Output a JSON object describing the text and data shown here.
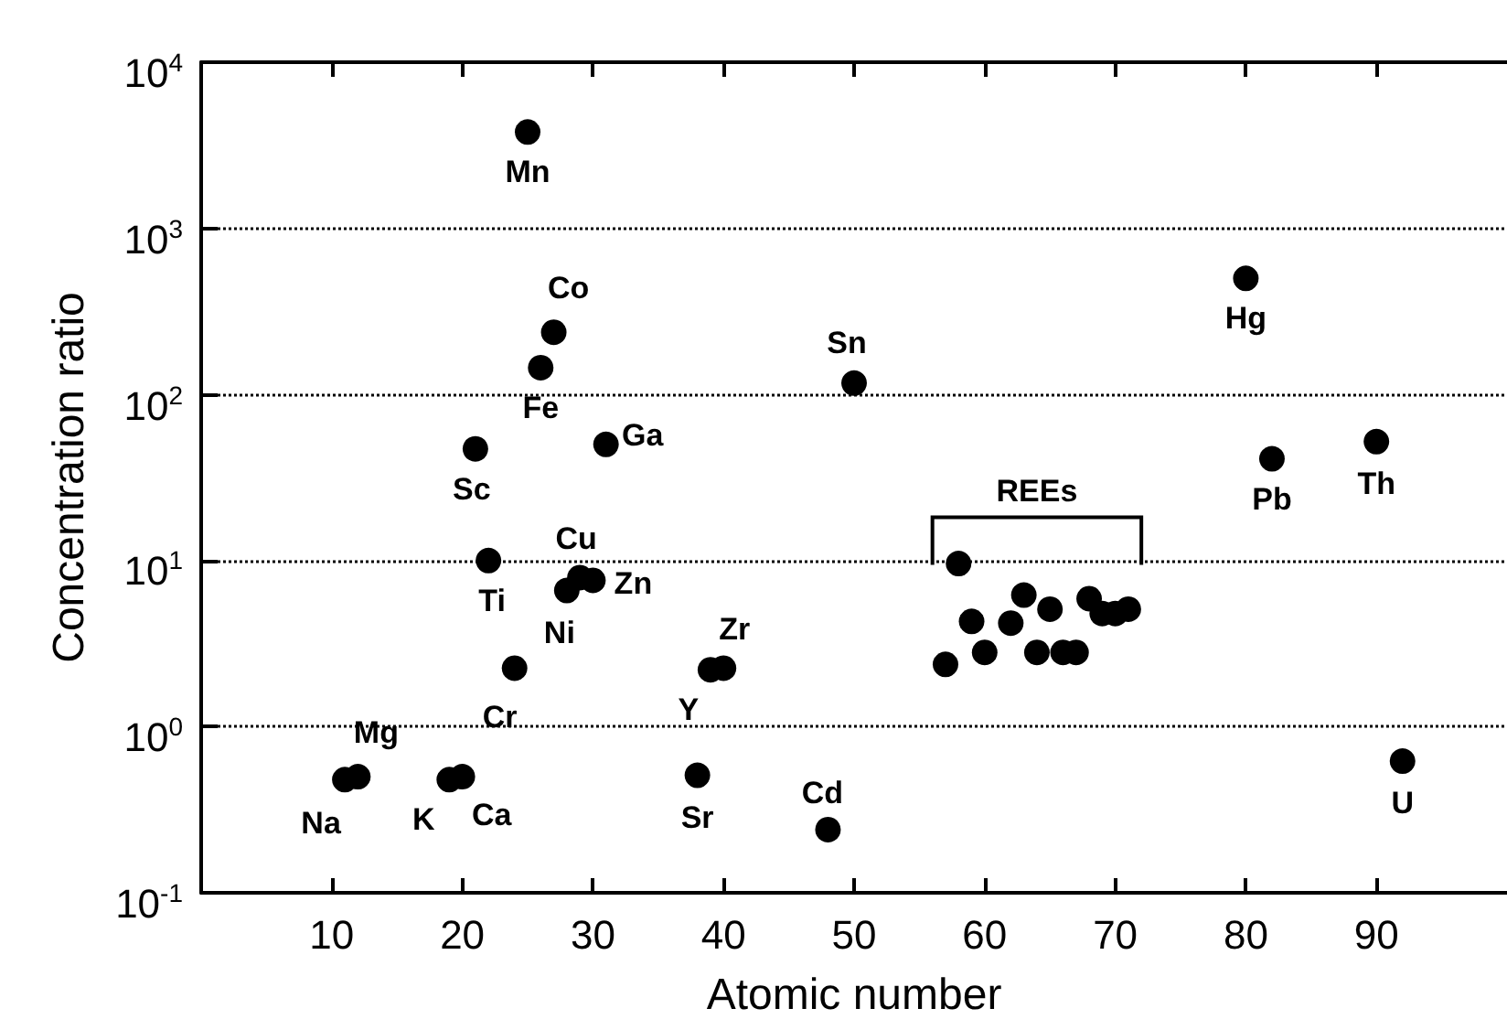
{
  "chart_data": {
    "type": "scatter",
    "xlabel": "Atomic number",
    "ylabel": "Concentration ratio",
    "x": [
      11,
      12,
      19,
      20,
      21,
      22,
      24,
      25,
      26,
      27,
      28,
      29,
      30,
      31,
      38,
      39,
      40,
      48,
      50,
      57,
      58,
      59,
      60,
      62,
      63,
      64,
      65,
      66,
      67,
      68,
      69,
      70,
      71,
      80,
      82,
      90,
      92
    ],
    "series": [
      {
        "color": "#000000",
        "values": [
          0.48,
          0.5,
          0.48,
          0.5,
          47,
          10,
          2.25,
          3800,
          145,
          237,
          6.6,
          7.9,
          7.6,
          50,
          0.51,
          2.2,
          2.25,
          0.24,
          117,
          2.37,
          9.6,
          4.3,
          2.8,
          4.2,
          6.2,
          2.8,
          5.1,
          2.8,
          2.8,
          5.9,
          4.8,
          4.8,
          5.1,
          500,
          41,
          52,
          0.62
        ]
      }
    ],
    "annotations": [
      {
        "text": "Na",
        "x": 11,
        "y": 0.48
      },
      {
        "text": "Mg",
        "x": 12,
        "y": 0.5
      },
      {
        "text": "K",
        "x": 19,
        "y": 0.48
      },
      {
        "text": "Ca",
        "x": 20,
        "y": 0.5
      },
      {
        "text": "Sc",
        "x": 21,
        "y": 47
      },
      {
        "text": "Ti",
        "x": 22,
        "y": 10
      },
      {
        "text": "Cr",
        "x": 24,
        "y": 2.25
      },
      {
        "text": "Mn",
        "x": 25,
        "y": 3800
      },
      {
        "text": "Fe",
        "x": 26,
        "y": 145
      },
      {
        "text": "Co",
        "x": 27,
        "y": 237
      },
      {
        "text": "Ni",
        "x": 28,
        "y": 6.6
      },
      {
        "text": "Cu",
        "x": 29,
        "y": 7.9
      },
      {
        "text": "Zn",
        "x": 30,
        "y": 7.6
      },
      {
        "text": "Ga",
        "x": 31,
        "y": 50
      },
      {
        "text": "Sr",
        "x": 38,
        "y": 0.51
      },
      {
        "text": "Y",
        "x": 39,
        "y": 2.2
      },
      {
        "text": "Zr",
        "x": 40,
        "y": 2.25
      },
      {
        "text": "Cd",
        "x": 48,
        "y": 0.24
      },
      {
        "text": "Sn",
        "x": 50,
        "y": 117
      },
      "REEs",
      {
        "text": "Hg",
        "x": 80,
        "y": 500
      },
      {
        "text": "Pb",
        "x": 82,
        "y": 41
      },
      {
        "text": "Th",
        "x": 90,
        "y": 52
      },
      {
        "text": "U",
        "x": 92,
        "y": 0.62
      }
    ],
    "xlim": [
      0,
      100
    ],
    "xticks": [
      10,
      20,
      30,
      40,
      50,
      60,
      70,
      80,
      90
    ],
    "ylim": [
      0.1,
      10000
    ],
    "yticks": [
      {
        "value": 0.1,
        "label": "10$^{-1}$"
      },
      {
        "value": 1,
        "label": "10$^{0}$"
      },
      {
        "value": 10,
        "label": "10$^{1}$"
      },
      {
        "value": 100,
        "label": "10$^{2}$"
      },
      {
        "value": 1000,
        "label": "10$^{3}$"
      },
      {
        "value": 10000,
        "label": "10$^{4}$"
      }
    ],
    "log": "y",
    "grid": "y",
    "marker": "circle"
  }
}
